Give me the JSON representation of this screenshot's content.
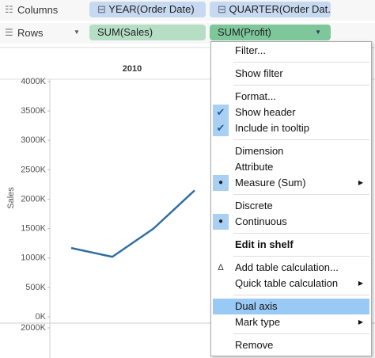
{
  "shelves": {
    "columns": {
      "label": "Columns",
      "pills": [
        "YEAR(Order Date)",
        "QUARTER(Order Dat.."
      ]
    },
    "rows": {
      "label": "Rows",
      "pills": [
        "SUM(Sales)",
        "SUM(Profit)"
      ]
    }
  },
  "chart_data": {
    "type": "line",
    "column_header": "2010",
    "y_label": "Sales",
    "categories": [
      null,
      null,
      null,
      null
    ],
    "series": [
      {
        "name": "SUM(Sales)",
        "color": "#2f6ea5",
        "values": [
          1170000,
          1020000,
          1500000,
          2150000
        ]
      }
    ],
    "ylim": [
      0,
      4000000
    ],
    "yticks": [
      {
        "value": 0,
        "label": "0K"
      },
      {
        "value": 500000,
        "label": "500K"
      },
      {
        "value": 1000000,
        "label": "1000K"
      },
      {
        "value": 1500000,
        "label": "1500K"
      },
      {
        "value": 2000000,
        "label": "2000K"
      },
      {
        "value": 2500000,
        "label": "2500K"
      },
      {
        "value": 3000000,
        "label": "3000K"
      },
      {
        "value": 3500000,
        "label": "3500K"
      },
      {
        "value": 4000000,
        "label": "4000K"
      }
    ],
    "y2lim": [
      0,
      2000000
    ],
    "y2ticks": [
      {
        "value": 2000000,
        "label": "2000K"
      }
    ]
  },
  "menu": {
    "groups": [
      [
        {
          "label": "Filter..."
        }
      ],
      [
        {
          "label": "Show filter"
        }
      ],
      [
        {
          "label": "Format..."
        },
        {
          "label": "Show header",
          "state": "check"
        },
        {
          "label": "Include in tooltip",
          "state": "check"
        }
      ],
      [
        {
          "label": "Dimension"
        },
        {
          "label": "Attribute"
        },
        {
          "label": "Measure (Sum)",
          "state": "dot",
          "submenu": true
        }
      ],
      [
        {
          "label": "Discrete"
        },
        {
          "label": "Continuous",
          "state": "dot"
        }
      ],
      [
        {
          "label": "Edit in shelf",
          "bold": true
        }
      ],
      [
        {
          "label": "Add table calculation...",
          "icon": "delta"
        },
        {
          "label": "Quick table calculation",
          "submenu": true
        }
      ],
      [
        {
          "label": "Dual axis",
          "highlighted": true
        },
        {
          "label": "Mark type",
          "submenu": true
        }
      ],
      [
        {
          "label": "Remove"
        }
      ]
    ]
  }
}
